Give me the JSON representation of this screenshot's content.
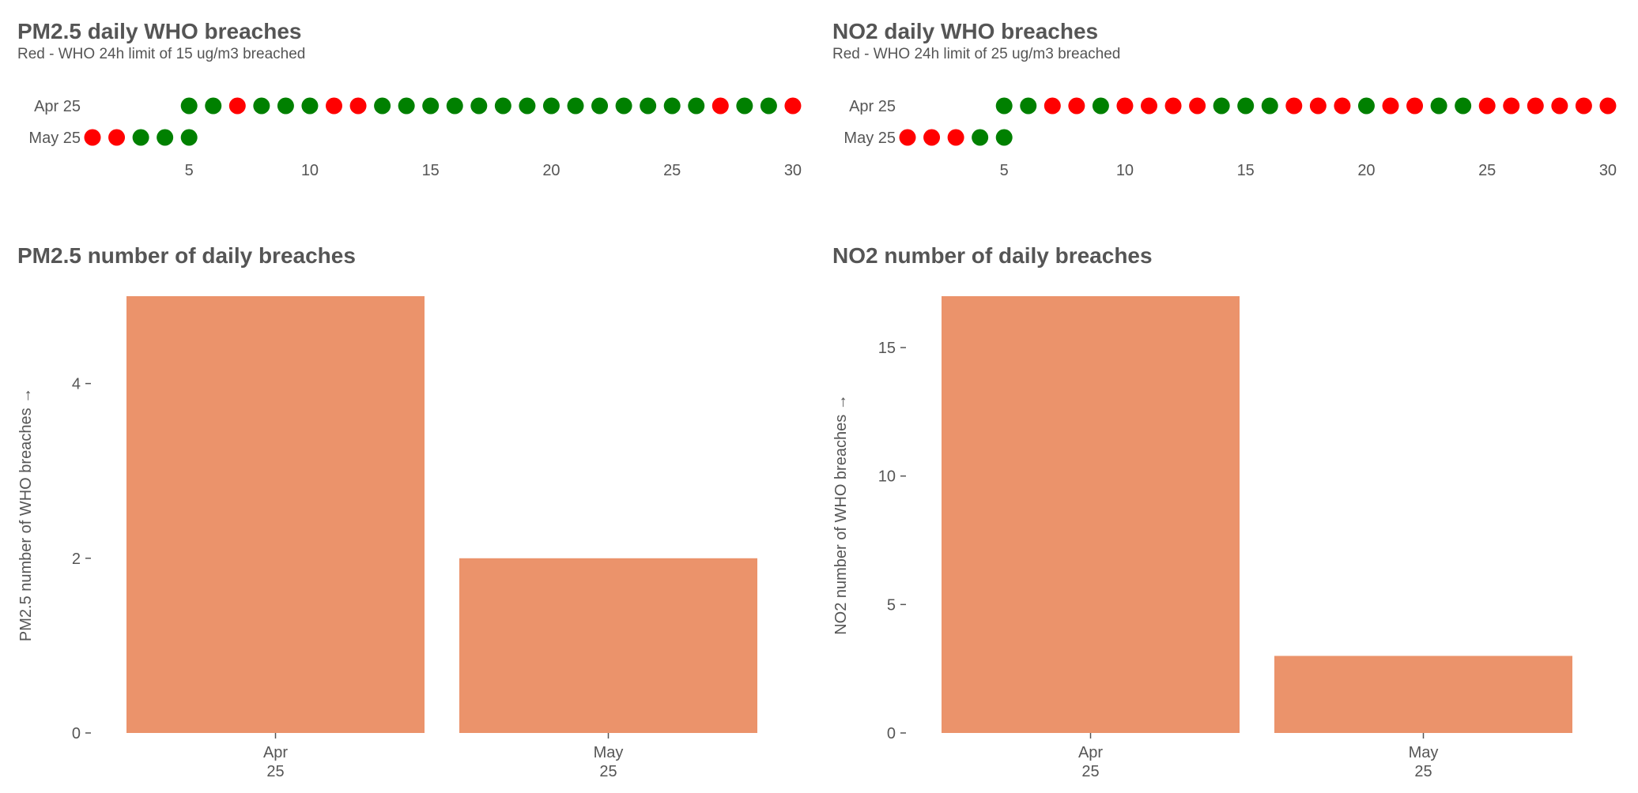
{
  "colors": {
    "red": "#ff0000",
    "green": "#008000",
    "bar": "#eb936b",
    "text": "#555555"
  },
  "chart_data": [
    {
      "type": "scatter",
      "title": "PM2.5 daily WHO breaches",
      "subtitle": "Red - WHO 24h limit of 15 ug/m3 breached",
      "rows": [
        "Apr 25",
        "May 25"
      ],
      "xticks": [
        5,
        10,
        15,
        20,
        25,
        30
      ],
      "xlim": [
        1,
        30
      ],
      "series": [
        {
          "row": "Apr 25",
          "days": [
            5,
            6,
            7,
            8,
            9,
            10,
            11,
            12,
            13,
            14,
            15,
            16,
            17,
            18,
            19,
            20,
            21,
            22,
            23,
            24,
            25,
            26,
            27,
            28,
            29,
            30
          ],
          "breach": [
            0,
            0,
            1,
            0,
            0,
            0,
            1,
            1,
            0,
            0,
            0,
            0,
            0,
            0,
            0,
            0,
            0,
            0,
            0,
            0,
            0,
            0,
            1,
            0,
            0,
            1
          ]
        },
        {
          "row": "May 25",
          "days": [
            1,
            2,
            3,
            4,
            5
          ],
          "breach": [
            1,
            1,
            0,
            0,
            0
          ]
        }
      ]
    },
    {
      "type": "scatter",
      "title": "NO2 daily WHO breaches",
      "subtitle": "Red - WHO 24h limit of 25 ug/m3 breached",
      "rows": [
        "Apr 25",
        "May 25"
      ],
      "xticks": [
        5,
        10,
        15,
        20,
        25,
        30
      ],
      "xlim": [
        1,
        30
      ],
      "series": [
        {
          "row": "Apr 25",
          "days": [
            5,
            6,
            7,
            8,
            9,
            10,
            11,
            12,
            13,
            14,
            15,
            16,
            17,
            18,
            19,
            20,
            21,
            22,
            23,
            24,
            25,
            26,
            27,
            28,
            29,
            30
          ],
          "breach": [
            0,
            0,
            1,
            1,
            0,
            1,
            1,
            1,
            1,
            0,
            0,
            0,
            1,
            1,
            1,
            0,
            1,
            1,
            0,
            0,
            1,
            1,
            1,
            1,
            1,
            1
          ]
        },
        {
          "row": "May 25",
          "days": [
            1,
            2,
            3,
            4,
            5
          ],
          "breach": [
            1,
            1,
            1,
            0,
            0
          ]
        }
      ]
    },
    {
      "type": "bar",
      "title": "PM2.5 number of daily breaches",
      "ylabel": "PM2.5 number of WHO breaches →",
      "categories": [
        [
          "Apr",
          "25"
        ],
        [
          "May",
          "25"
        ]
      ],
      "values": [
        5,
        2
      ],
      "ylim": [
        0,
        5
      ],
      "yticks": [
        0,
        2,
        4
      ]
    },
    {
      "type": "bar",
      "title": "NO2 number of daily breaches",
      "ylabel": "NO2 number of WHO breaches →",
      "categories": [
        [
          "Apr",
          "25"
        ],
        [
          "May",
          "25"
        ]
      ],
      "values": [
        17,
        3
      ],
      "ylim": [
        0,
        17
      ],
      "yticks": [
        0,
        5,
        10,
        15
      ]
    }
  ]
}
